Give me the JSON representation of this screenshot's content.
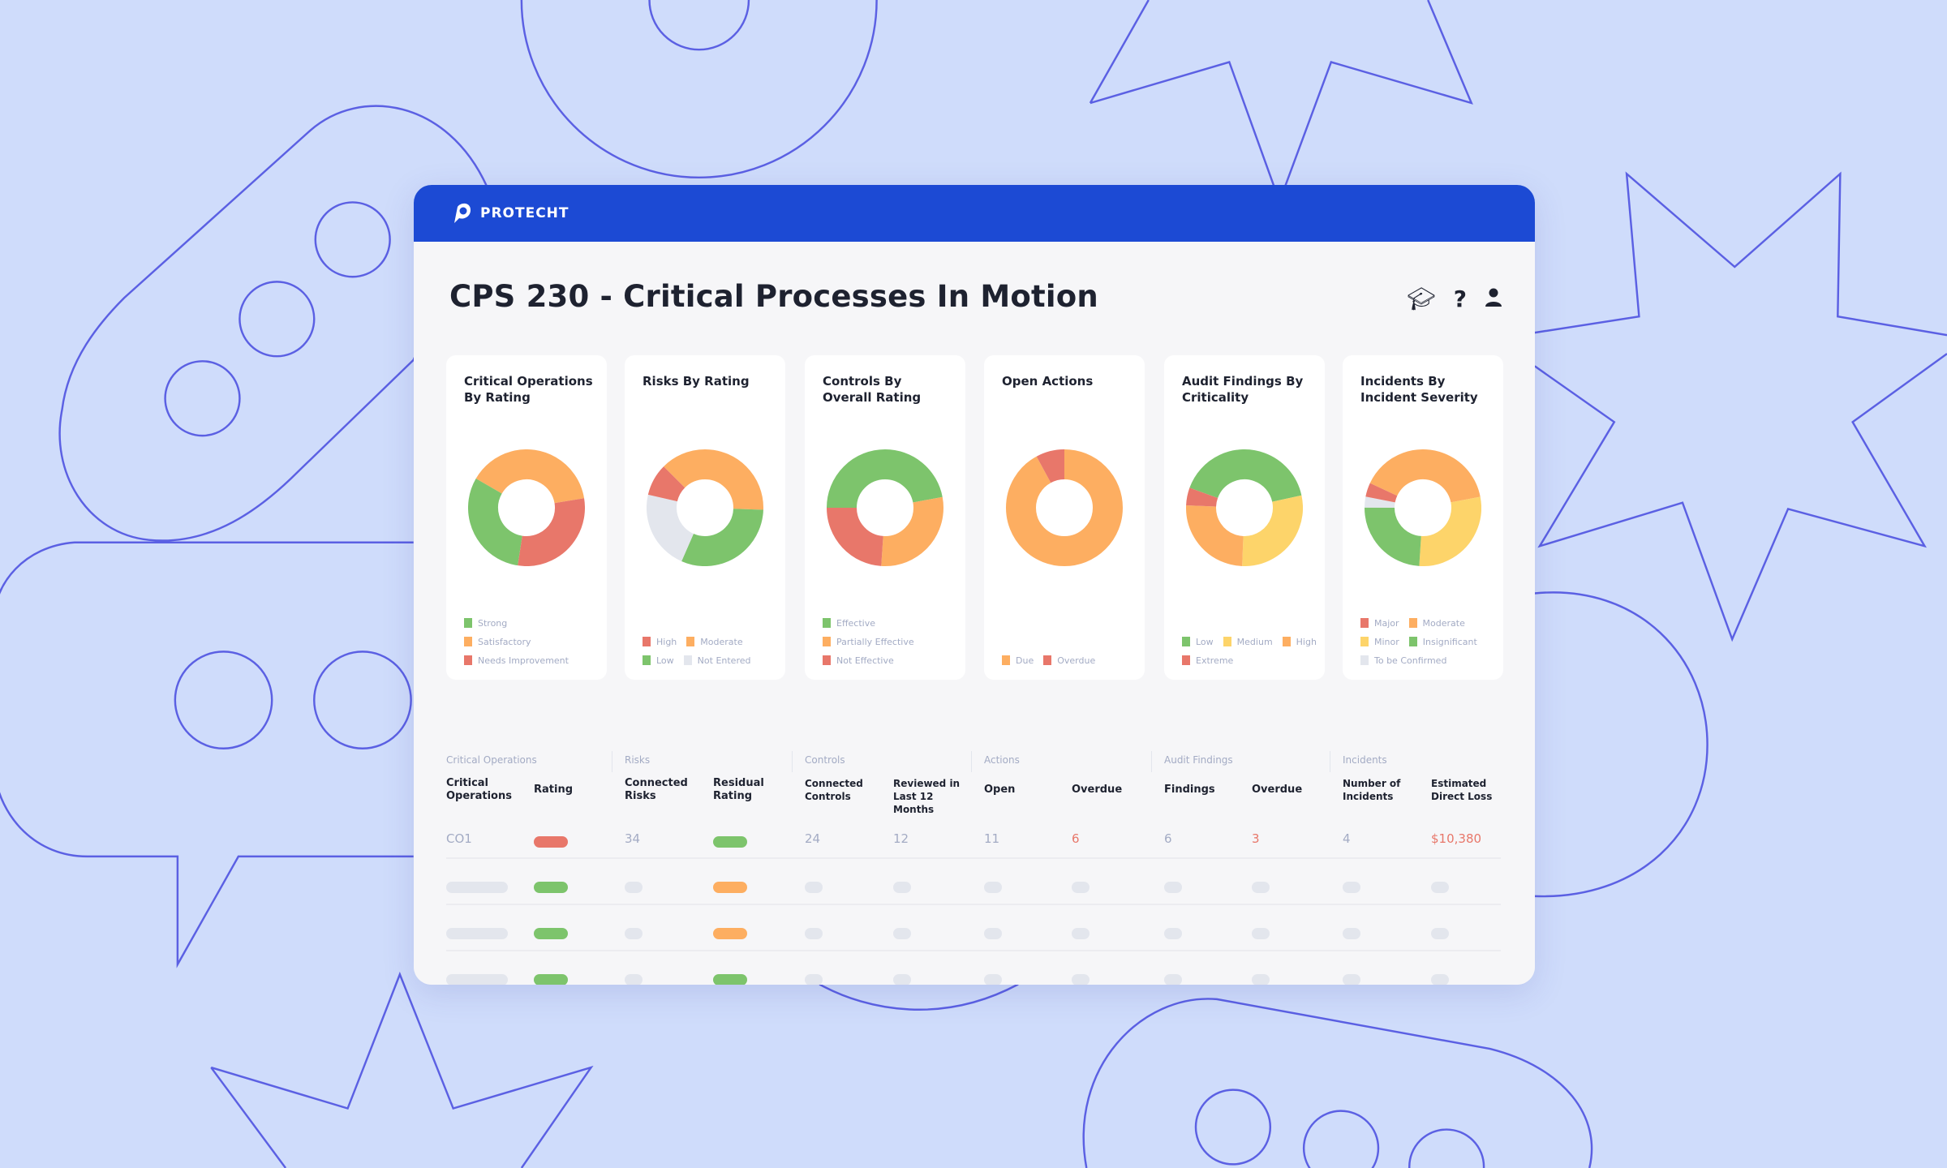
{
  "app": {
    "brand": "PROTECHT",
    "title": "CPS 230 - Critical Processes In Motion"
  },
  "toolbar_icons": [
    "graduation-cap-icon",
    "help-icon",
    "user-icon"
  ],
  "colors": {
    "green": "#7dc46c",
    "orange": "#fdae61",
    "red": "#e8776a",
    "yellow": "#fdd46a",
    "grey": "#e3e6ed",
    "header": "#1c4ad4"
  },
  "cards": [
    {
      "title": "Critical Operations By Rating",
      "segments": [
        {
          "label": "Satisfactory",
          "color": "orange",
          "pct": 39
        },
        {
          "label": "Needs Improvement",
          "color": "red",
          "pct": 30
        },
        {
          "label": "Strong",
          "color": "green",
          "pct": 31
        }
      ],
      "legend": [
        {
          "label": "Strong",
          "color": "green",
          "full": true
        },
        {
          "label": "Satisfactory",
          "color": "orange",
          "full": true
        },
        {
          "label": "Needs Improvement",
          "color": "red",
          "full": true
        }
      ]
    },
    {
      "title": "Risks By Rating",
      "segments": [
        {
          "label": "Moderate",
          "color": "orange",
          "pct": 38
        },
        {
          "label": "Low",
          "color": "green",
          "pct": 31
        },
        {
          "label": "Not Entered",
          "color": "grey",
          "pct": 22
        },
        {
          "label": "High",
          "color": "red",
          "pct": 9
        }
      ],
      "legend": [
        {
          "label": "High",
          "color": "red"
        },
        {
          "label": "Moderate",
          "color": "orange"
        },
        {
          "label": "Low",
          "color": "green"
        },
        {
          "label": "Not Entered",
          "color": "grey"
        }
      ]
    },
    {
      "title": "Controls By Overall Rating",
      "segments": [
        {
          "label": "Effective",
          "color": "green",
          "pct": 47
        },
        {
          "label": "Partially Effective",
          "color": "orange",
          "pct": 29
        },
        {
          "label": "Not Effective",
          "color": "red",
          "pct": 24
        }
      ],
      "legend": [
        {
          "label": "Effective",
          "color": "green",
          "full": true
        },
        {
          "label": "Partially Effective",
          "color": "orange",
          "full": true
        },
        {
          "label": "Not Effective",
          "color": "red",
          "full": true
        }
      ]
    },
    {
      "title": "Open Actions",
      "segments": [
        {
          "label": "Due",
          "color": "orange",
          "pct": 92
        },
        {
          "label": "Overdue",
          "color": "red",
          "pct": 8
        }
      ],
      "legend": [
        {
          "label": "Due",
          "color": "orange"
        },
        {
          "label": "Overdue",
          "color": "red"
        }
      ]
    },
    {
      "title": "Audit Findings By Criticality",
      "segments": [
        {
          "label": "Low",
          "color": "green",
          "pct": 41
        },
        {
          "label": "Medium",
          "color": "yellow",
          "pct": 29
        },
        {
          "label": "High",
          "color": "orange",
          "pct": 25
        },
        {
          "label": "Extreme",
          "color": "red",
          "pct": 5
        }
      ],
      "legend": [
        {
          "label": "Low",
          "color": "green"
        },
        {
          "label": "Medium",
          "color": "yellow"
        },
        {
          "label": "High",
          "color": "orange"
        },
        {
          "label": "Extreme",
          "color": "red"
        }
      ]
    },
    {
      "title": "Incidents By Incident Severity",
      "segments": [
        {
          "label": "Moderate",
          "color": "orange",
          "pct": 40
        },
        {
          "label": "Minor",
          "color": "yellow",
          "pct": 29
        },
        {
          "label": "Insignificant",
          "color": "green",
          "pct": 24
        },
        {
          "label": "To be Confirmed",
          "color": "grey",
          "pct": 3
        },
        {
          "label": "Major",
          "color": "red",
          "pct": 4
        }
      ],
      "legend": [
        {
          "label": "Major",
          "color": "red"
        },
        {
          "label": "Moderate",
          "color": "orange"
        },
        {
          "label": "Minor",
          "color": "yellow"
        },
        {
          "label": "Insignificant",
          "color": "green"
        },
        {
          "label": "To be Confirmed",
          "color": "grey",
          "full": true
        }
      ]
    }
  ],
  "table": {
    "groups": [
      "Critical Operations",
      "Risks",
      "Controls",
      "Actions",
      "Audit Findings",
      "Incidents"
    ],
    "columns": [
      "Critical Operations",
      "Rating",
      "Connected Risks",
      "Residual Rating",
      "Connected Controls",
      "Reviewed in Last 12 Months",
      "Open",
      "Overdue",
      "Findings",
      "Overdue",
      "Number of Incidents",
      "Estimated Direct Loss"
    ],
    "row1": {
      "critical_operation": "CO1",
      "rating": "red",
      "connected_risks": "34",
      "residual_rating": "green",
      "connected_controls": "24",
      "reviewed": "12",
      "open": "11",
      "actions_overdue": "6",
      "findings": "6",
      "findings_overdue": "3",
      "incidents": "4",
      "direct_loss": "$10,380"
    },
    "placeholder_rows": [
      {
        "rating": "green",
        "residual_rating": "orange"
      },
      {
        "rating": "green",
        "residual_rating": "orange"
      },
      {
        "rating": "green",
        "residual_rating": "green"
      }
    ]
  }
}
